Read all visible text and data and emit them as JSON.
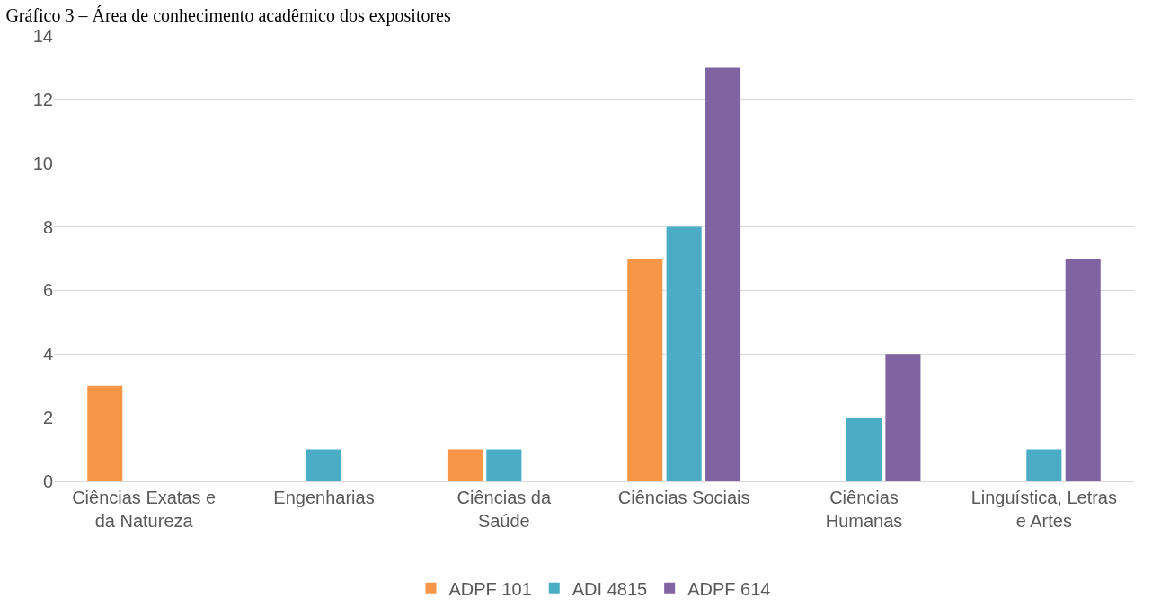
{
  "chart_data": {
    "type": "bar",
    "title": "Gráfico 3 – Área de conhecimento acadêmico dos expositores",
    "categories": [
      "Ciências Exatas e\nda Natureza",
      "Engenharias",
      "Ciências da\nSaúde",
      "Ciências Sociais",
      "Ciências\nHumanas",
      "Linguística, Letras\ne Artes"
    ],
    "series": [
      {
        "name": "ADPF 101",
        "color": "#f79646",
        "values": [
          3,
          0,
          1,
          7,
          0,
          0
        ]
      },
      {
        "name": "ADI 4815",
        "color": "#4bacc6",
        "values": [
          0,
          1,
          1,
          8,
          2,
          1
        ]
      },
      {
        "name": "ADPF 614",
        "color": "#8064a2",
        "values": [
          0,
          0,
          0,
          13,
          4,
          7
        ]
      }
    ],
    "ylim": [
      0,
      14
    ],
    "yticks": [
      0,
      2,
      4,
      6,
      8,
      10,
      12,
      14
    ],
    "grid": "y",
    "legend": "bottom"
  }
}
